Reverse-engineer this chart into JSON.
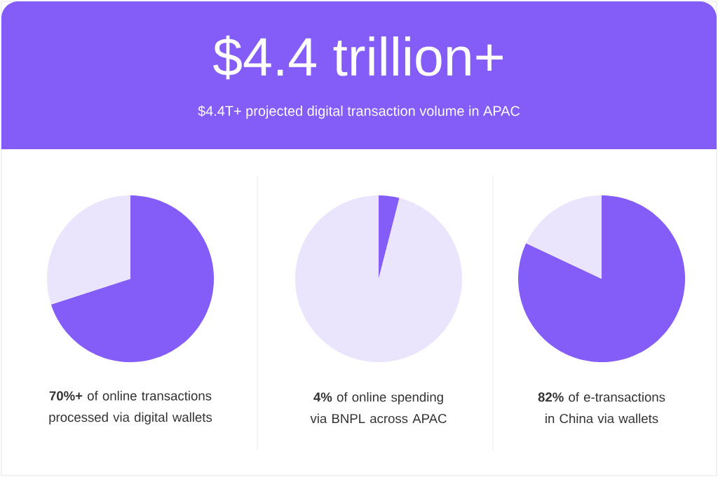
{
  "chart_data": [
    {
      "type": "other",
      "title": "$4.4 trillion+",
      "subtitle": "$4.4T+ projected digital transaction volume in APAC"
    },
    {
      "type": "pie",
      "categories": [
        null,
        null
      ],
      "values": [
        70,
        30
      ],
      "colors": [
        "#845cf8",
        "#ebe4fd"
      ],
      "annotations": [
        "**70%+** of online transactions processed via digital wallets"
      ]
    },
    {
      "type": "pie",
      "categories": [
        null,
        null
      ],
      "values": [
        4,
        96
      ],
      "colors": [
        "#845cf8",
        "#ebe4fd"
      ],
      "annotations": [
        "**4%** of online spending via BNPL across APAC"
      ]
    },
    {
      "type": "pie",
      "categories": [
        null,
        null
      ],
      "values": [
        82,
        18
      ],
      "colors": [
        "#845cf8",
        "#ebe4fd"
      ],
      "annotations": [
        "**82%** of e-transactions in China via wallets"
      ]
    }
  ]
}
